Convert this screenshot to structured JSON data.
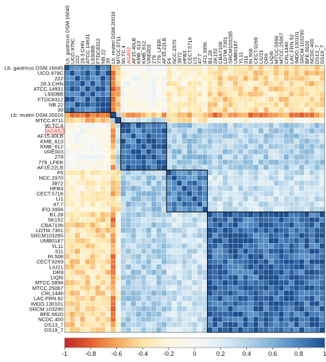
{
  "chart_data": {
    "type": "heatmap",
    "title": "",
    "xlabel": "",
    "ylabel": "",
    "labels": [
      "Lb. gastricus DSM.16045",
      "UCO.979C",
      "222",
      "28.3.CHN",
      "ATCC.14931",
      "L930BB",
      "FTDC8312",
      "NB.22",
      "39",
      "Lb. reuteri DSM.20016",
      "MTCC.8711",
      "90.TC.4",
      "AGA52",
      "AF15.40LB",
      "KMB_613",
      "KMB_612",
      "VRE003",
      "279",
      "779_LFER",
      "AF16.22LB",
      "F6",
      "NCC.2970",
      "3872",
      "HFB3",
      "CECT.5716",
      "LI1",
      "47.7",
      "IFO.3956",
      "B1.28",
      "SK152",
      "CBA7106",
      "LDTM.7301",
      "SRCM103285",
      "UMB0187",
      "YL11",
      "311",
      "RI.508",
      "CECT.9269",
      "LIU21",
      "DR9",
      "LIQI6",
      "MTCC.5898",
      "MTCC.25067",
      "CRL1446",
      "LAC.FRN.92",
      "IMDO.130101",
      "SRCM.103290",
      "BFE.6620",
      "NCDC.400",
      "DS13_7",
      "DS19_7"
    ],
    "highlighted_labels": [
      "AGA52"
    ],
    "clusters": [
      {
        "start": "Lb. gastricus DSM.16045",
        "end": "39"
      },
      {
        "start": "Lb. reuteri DSM.20016",
        "end": "Lb. reuteri DSM.20016"
      },
      {
        "start": "MTCC.8711",
        "end": "MTCC.8711"
      },
      {
        "start": "90.TC.4",
        "end": "AF16.22LB"
      },
      {
        "start": "F6",
        "end": "IFO.3956"
      },
      {
        "start": "B1.28",
        "end": "DS19_7"
      }
    ],
    "colorbar": {
      "range": [
        -1,
        1
      ],
      "ticks": [
        -1,
        -0.8,
        -0.6,
        -0.4,
        -0.2,
        0,
        0.2,
        0.4,
        0.6,
        0.8,
        1
      ],
      "tick_labels": [
        "-1",
        "-0.8",
        "-0.6",
        "-0.4",
        "-0.2",
        "0",
        "0.2",
        "0.4",
        "0.6",
        "0.8",
        "1"
      ],
      "colors": [
        "#c0282a",
        "#e4602f",
        "#f6a85a",
        "#fde4a6",
        "#fdf6dd",
        "#f7f7f7",
        "#dfeef5",
        "#b5d4e8",
        "#7fb2d6",
        "#4a83bd",
        "#1f4e8f"
      ]
    },
    "grid": true,
    "legend_position": "bottom"
  }
}
